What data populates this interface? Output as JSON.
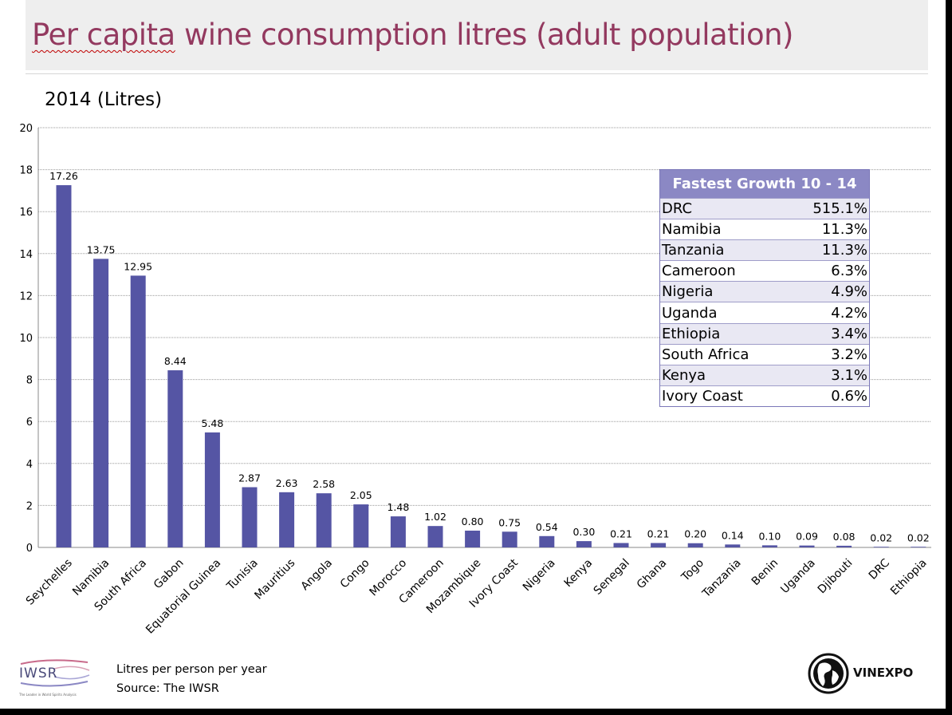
{
  "page": {
    "title_part1": "Per capita",
    "title_part2": " wine consumption litres (adult population)",
    "footer_line1": "Litres per person per year",
    "footer_line2": "Source: The IWSR"
  },
  "logos": {
    "iwsr_text": "IWSR",
    "iwsr_tagline": "The Leader in World Spirits Analysis",
    "vinexpo_text": "VINEXPO"
  },
  "colors": {
    "bar": "#5555a4",
    "title": "#93395f",
    "table_header": "#8b88c4"
  },
  "growth_table": {
    "header": "Fastest Growth 10 - 14",
    "rows": [
      {
        "country": "DRC",
        "value": "515.1%"
      },
      {
        "country": "Namibia",
        "value": "11.3%"
      },
      {
        "country": "Tanzania",
        "value": "11.3%"
      },
      {
        "country": "Cameroon",
        "value": "6.3%"
      },
      {
        "country": "Nigeria",
        "value": "4.9%"
      },
      {
        "country": "Uganda",
        "value": "4.2%"
      },
      {
        "country": "Ethiopia",
        "value": "3.4%"
      },
      {
        "country": "South Africa",
        "value": "3.2%"
      },
      {
        "country": "Kenya",
        "value": "3.1%"
      },
      {
        "country": "Ivory Coast",
        "value": "0.6%"
      }
    ]
  },
  "chart_data": {
    "type": "bar",
    "title": "2014 (Litres)",
    "xlabel": "",
    "ylabel": "",
    "ylim": [
      0,
      20
    ],
    "yticks": [
      0,
      2,
      4,
      6,
      8,
      10,
      12,
      14,
      16,
      18,
      20
    ],
    "grid": true,
    "categories": [
      "Seychelles",
      "Namibia",
      "South Africa",
      "Gabon",
      "Equatorial Guinea",
      "Tunisia",
      "Mauritius",
      "Angola",
      "Congo",
      "Morocco",
      "Cameroon",
      "Mozambique",
      "Ivory Coast",
      "Nigeria",
      "Kenya",
      "Senegal",
      "Ghana",
      "Togo",
      "Tanzania",
      "Benin",
      "Uganda",
      "Djibouti",
      "DRC",
      "Ethiopia"
    ],
    "values": [
      17.26,
      13.75,
      12.95,
      8.44,
      5.48,
      2.87,
      2.63,
      2.58,
      2.05,
      1.48,
      1.02,
      0.8,
      0.75,
      0.54,
      0.3,
      0.21,
      0.21,
      0.2,
      0.14,
      0.1,
      0.09,
      0.08,
      0.02,
      0.02
    ],
    "value_labels": [
      "17.26",
      "13.75",
      "12.95",
      "8.44",
      "5.48",
      "2.87",
      "2.63",
      "2.58",
      "2.05",
      "1.48",
      "1.02",
      "0.80",
      "0.75",
      "0.54",
      "0.30",
      "0.21",
      "0.21",
      "0.20",
      "0.14",
      "0.10",
      "0.09",
      "0.08",
      "0.02",
      "0.02"
    ]
  }
}
